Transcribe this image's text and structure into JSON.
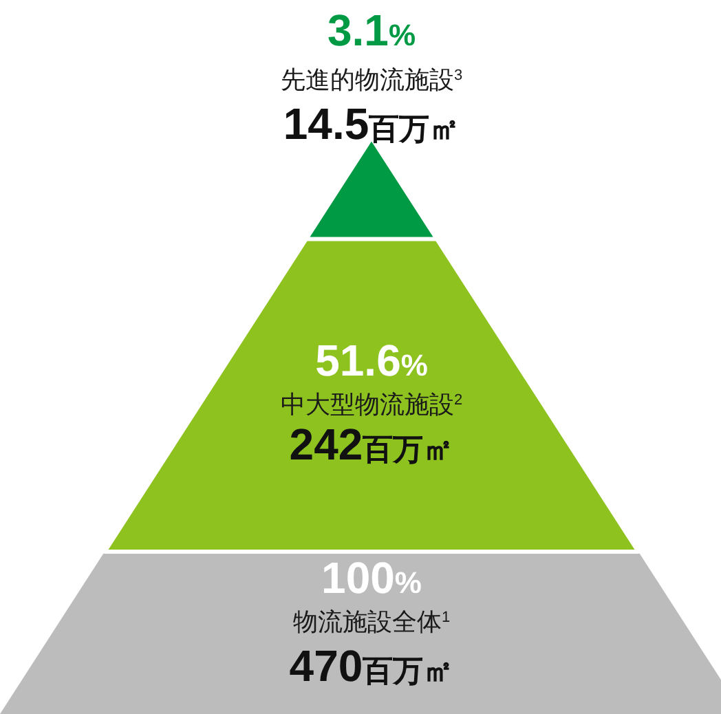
{
  "chart_data": {
    "type": "other",
    "categories": [
      "先進的物流施設$^{3}$",
      "中大型物流施設$^{2}$",
      "物流施設全体$^{1}$"
    ],
    "values": [
      3.1,
      51.6,
      100
    ],
    "value_labels": [
      "3.1%",
      "51.6%",
      "100%"
    ],
    "annotations": [
      "14.5百万㎡",
      "242百万㎡",
      "470百万㎡"
    ],
    "colors": [
      "#009a44",
      "#8dc21f",
      "#bdbcbc"
    ]
  }
}
